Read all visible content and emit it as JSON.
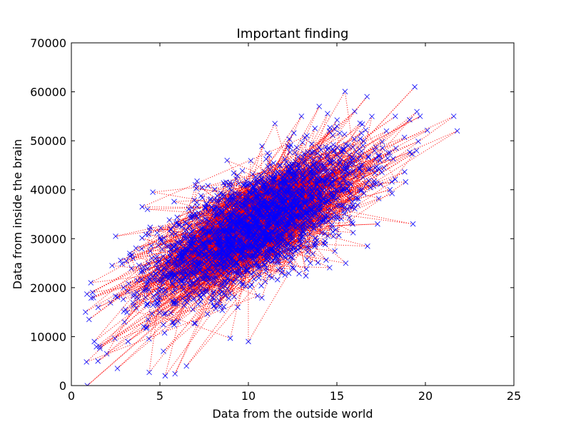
{
  "chart_data": {
    "type": "scatter",
    "title": "Important finding",
    "xlabel": "Data from the outside world",
    "ylabel": "Data from inside the brain",
    "xlim": [
      0,
      25
    ],
    "ylim": [
      0,
      70000
    ],
    "xticks": [
      0,
      5,
      10,
      15,
      20,
      25
    ],
    "yticks": [
      0,
      10000,
      20000,
      30000,
      40000,
      50000,
      60000,
      70000
    ],
    "xtick_labels": [
      "0",
      "5",
      "10",
      "15",
      "20",
      "25"
    ],
    "ytick_labels": [
      "0",
      "10000",
      "20000",
      "30000",
      "40000",
      "50000",
      "60000",
      "70000"
    ],
    "grid": false,
    "legend": "none",
    "marker": "x",
    "line_style": "dotted",
    "colors": {
      "markers": "#0000ff",
      "line": "#ff0000",
      "axes": "#000000",
      "background": "#ffffff"
    },
    "series": [
      {
        "points_shown": "dense cloud of several thousand points, roughly bivariate normal",
        "cloud_center": [
          10.5,
          33000
        ],
        "x_spread": 3.0,
        "y_spread": 7500,
        "correlation": 0.7,
        "x": [
          0.8,
          0.9,
          1.0,
          1.1,
          1.2,
          1.3,
          1.5,
          1.6,
          2.0,
          2.3,
          2.5,
          2.6,
          3.0,
          3.2,
          3.3,
          4.0,
          4.1,
          4.3,
          4.4,
          4.6,
          5.0,
          5.2,
          5.3,
          5.6,
          6.0,
          6.5,
          7.0,
          8.2,
          8.8,
          9.4,
          10.0,
          10.5,
          11.0,
          11.5,
          12.0,
          12.5,
          13.0,
          13.5,
          14.0,
          14.5,
          15.0,
          15.5,
          16.0,
          16.7,
          17.3,
          18.0,
          18.3,
          19.3,
          19.4,
          19.7,
          21.6,
          21.8
        ],
        "y": [
          15000,
          0,
          13500,
          21000,
          19000,
          9000,
          5000,
          8000,
          6500,
          24500,
          30500,
          3500,
          13000,
          9000,
          27000,
          36500,
          12000,
          36000,
          2700,
          39500,
          18000,
          7000,
          2000,
          32000,
          28000,
          4000,
          41000,
          35000,
          46000,
          16000,
          9000,
          30000,
          24000,
          53500,
          42000,
          27000,
          55000,
          25000,
          57000,
          44000,
          53000,
          25000,
          56000,
          59000,
          33000,
          40000,
          55000,
          33000,
          61000,
          55000,
          55000,
          52000
        ]
      }
    ]
  }
}
